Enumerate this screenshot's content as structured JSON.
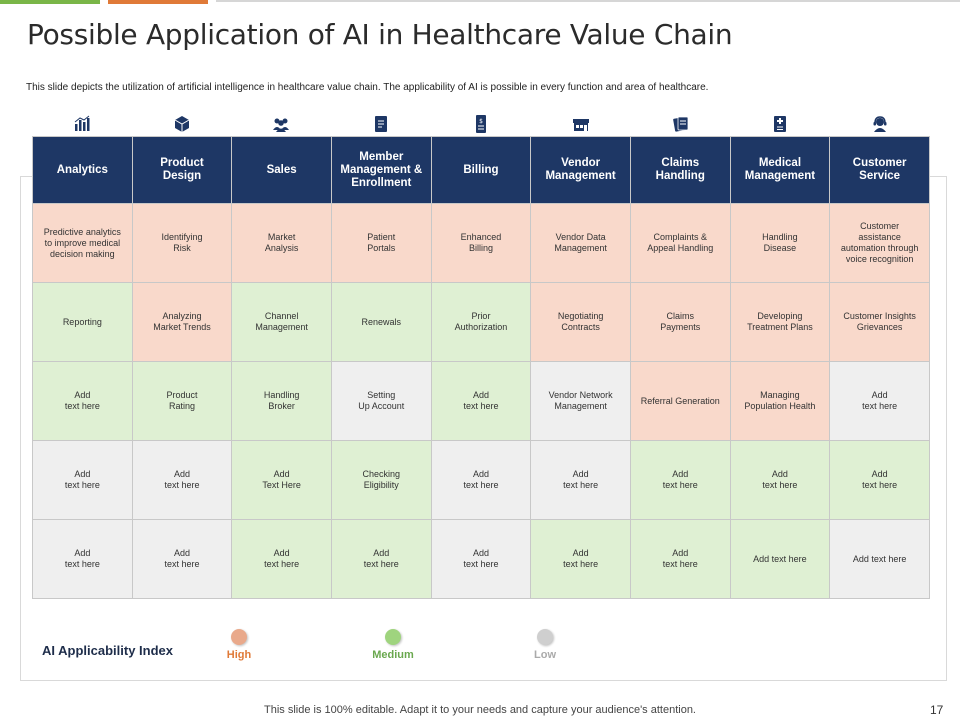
{
  "title": "Possible Application of AI in Healthcare Value Chain",
  "subtitle": "This slide depicts the utilization of artificial intelligence in healthcare value chain. The applicability of AI is possible in every function and area of healthcare.",
  "colors": {
    "header": "#1e3765",
    "high": "#f9d9cb",
    "medium": "#dff0d3",
    "low": "#efefef"
  },
  "columns": [
    {
      "label": "Analytics",
      "icon": "bar-chart-icon"
    },
    {
      "label": "Product\nDesign",
      "icon": "cube-icon"
    },
    {
      "label": "Sales",
      "icon": "people-icon"
    },
    {
      "label": "Member\nManagement &\nEnrollment",
      "icon": "document-icon"
    },
    {
      "label": "Billing",
      "icon": "bill-icon"
    },
    {
      "label": "Vendor\nManagement",
      "icon": "store-icon"
    },
    {
      "label": "Claims\nHandling",
      "icon": "claims-icon"
    },
    {
      "label": "Medical\nManagement",
      "icon": "medical-icon"
    },
    {
      "label": "Customer\nService",
      "icon": "agent-icon"
    }
  ],
  "rows": [
    [
      {
        "text": "Predictive analytics\nto improve medical\ndecision making",
        "level": "H"
      },
      {
        "text": "Identifying\nRisk",
        "level": "H"
      },
      {
        "text": "Market\nAnalysis",
        "level": "H"
      },
      {
        "text": "Patient\nPortals",
        "level": "H"
      },
      {
        "text": "Enhanced\nBilling",
        "level": "H"
      },
      {
        "text": "Vendor Data\nManagement",
        "level": "H"
      },
      {
        "text": "Complaints &\nAppeal Handling",
        "level": "H"
      },
      {
        "text": "Handling\nDisease",
        "level": "H"
      },
      {
        "text": "Customer\nassistance\nautomation through\nvoice recognition",
        "level": "H"
      }
    ],
    [
      {
        "text": "Reporting",
        "level": "M"
      },
      {
        "text": "Analyzing\nMarket Trends",
        "level": "H"
      },
      {
        "text": "Channel\nManagement",
        "level": "M"
      },
      {
        "text": "Renewals",
        "level": "M"
      },
      {
        "text": "Prior\nAuthorization",
        "level": "M"
      },
      {
        "text": "Negotiating\nContracts",
        "level": "H"
      },
      {
        "text": "Claims\nPayments",
        "level": "H"
      },
      {
        "text": "Developing\nTreatment Plans",
        "level": "H"
      },
      {
        "text": "Customer Insights\nGrievances",
        "level": "H"
      }
    ],
    [
      {
        "text": "Add\ntext here",
        "level": "M"
      },
      {
        "text": "Product\nRating",
        "level": "M"
      },
      {
        "text": "Handling\nBroker",
        "level": "M"
      },
      {
        "text": "Setting\nUp Account",
        "level": "L"
      },
      {
        "text": "Add\ntext here",
        "level": "M"
      },
      {
        "text": "Vendor Network\nManagement",
        "level": "L"
      },
      {
        "text": "Referral Generation",
        "level": "H"
      },
      {
        "text": "Managing\nPopulation Health",
        "level": "H"
      },
      {
        "text": "Add\ntext here",
        "level": "L"
      }
    ],
    [
      {
        "text": "Add\ntext here",
        "level": "L"
      },
      {
        "text": "Add\ntext here",
        "level": "L"
      },
      {
        "text": "Add\nText Here",
        "level": "M"
      },
      {
        "text": "Checking\nEligibility",
        "level": "M"
      },
      {
        "text": "Add\ntext here",
        "level": "L"
      },
      {
        "text": "Add\ntext here",
        "level": "L"
      },
      {
        "text": "Add\ntext here",
        "level": "M"
      },
      {
        "text": "Add\ntext here",
        "level": "M"
      },
      {
        "text": "Add\ntext here",
        "level": "M"
      }
    ],
    [
      {
        "text": "Add\ntext here",
        "level": "L"
      },
      {
        "text": "Add\ntext here",
        "level": "L"
      },
      {
        "text": "Add\ntext here",
        "level": "M"
      },
      {
        "text": "Add\ntext here",
        "level": "M"
      },
      {
        "text": "Add\ntext here",
        "level": "L"
      },
      {
        "text": "Add\ntext here",
        "level": "M"
      },
      {
        "text": "Add\ntext here",
        "level": "M"
      },
      {
        "text": "Add text here",
        "level": "M"
      },
      {
        "text": "Add text here",
        "level": "L"
      }
    ]
  ],
  "legend": {
    "title": "AI Applicability Index",
    "items": [
      {
        "label": "High",
        "dot": "#e9a98b",
        "text_color": "#e07a38"
      },
      {
        "label": "Medium",
        "dot": "#9fd47e",
        "text_color": "#6aa84f"
      },
      {
        "label": "Low",
        "dot": "#cfcfcf",
        "text_color": "#aaaaaa"
      }
    ]
  },
  "footer": "This slide is 100% editable. Adapt it to your needs and capture your audience's attention.",
  "page_number": "17"
}
